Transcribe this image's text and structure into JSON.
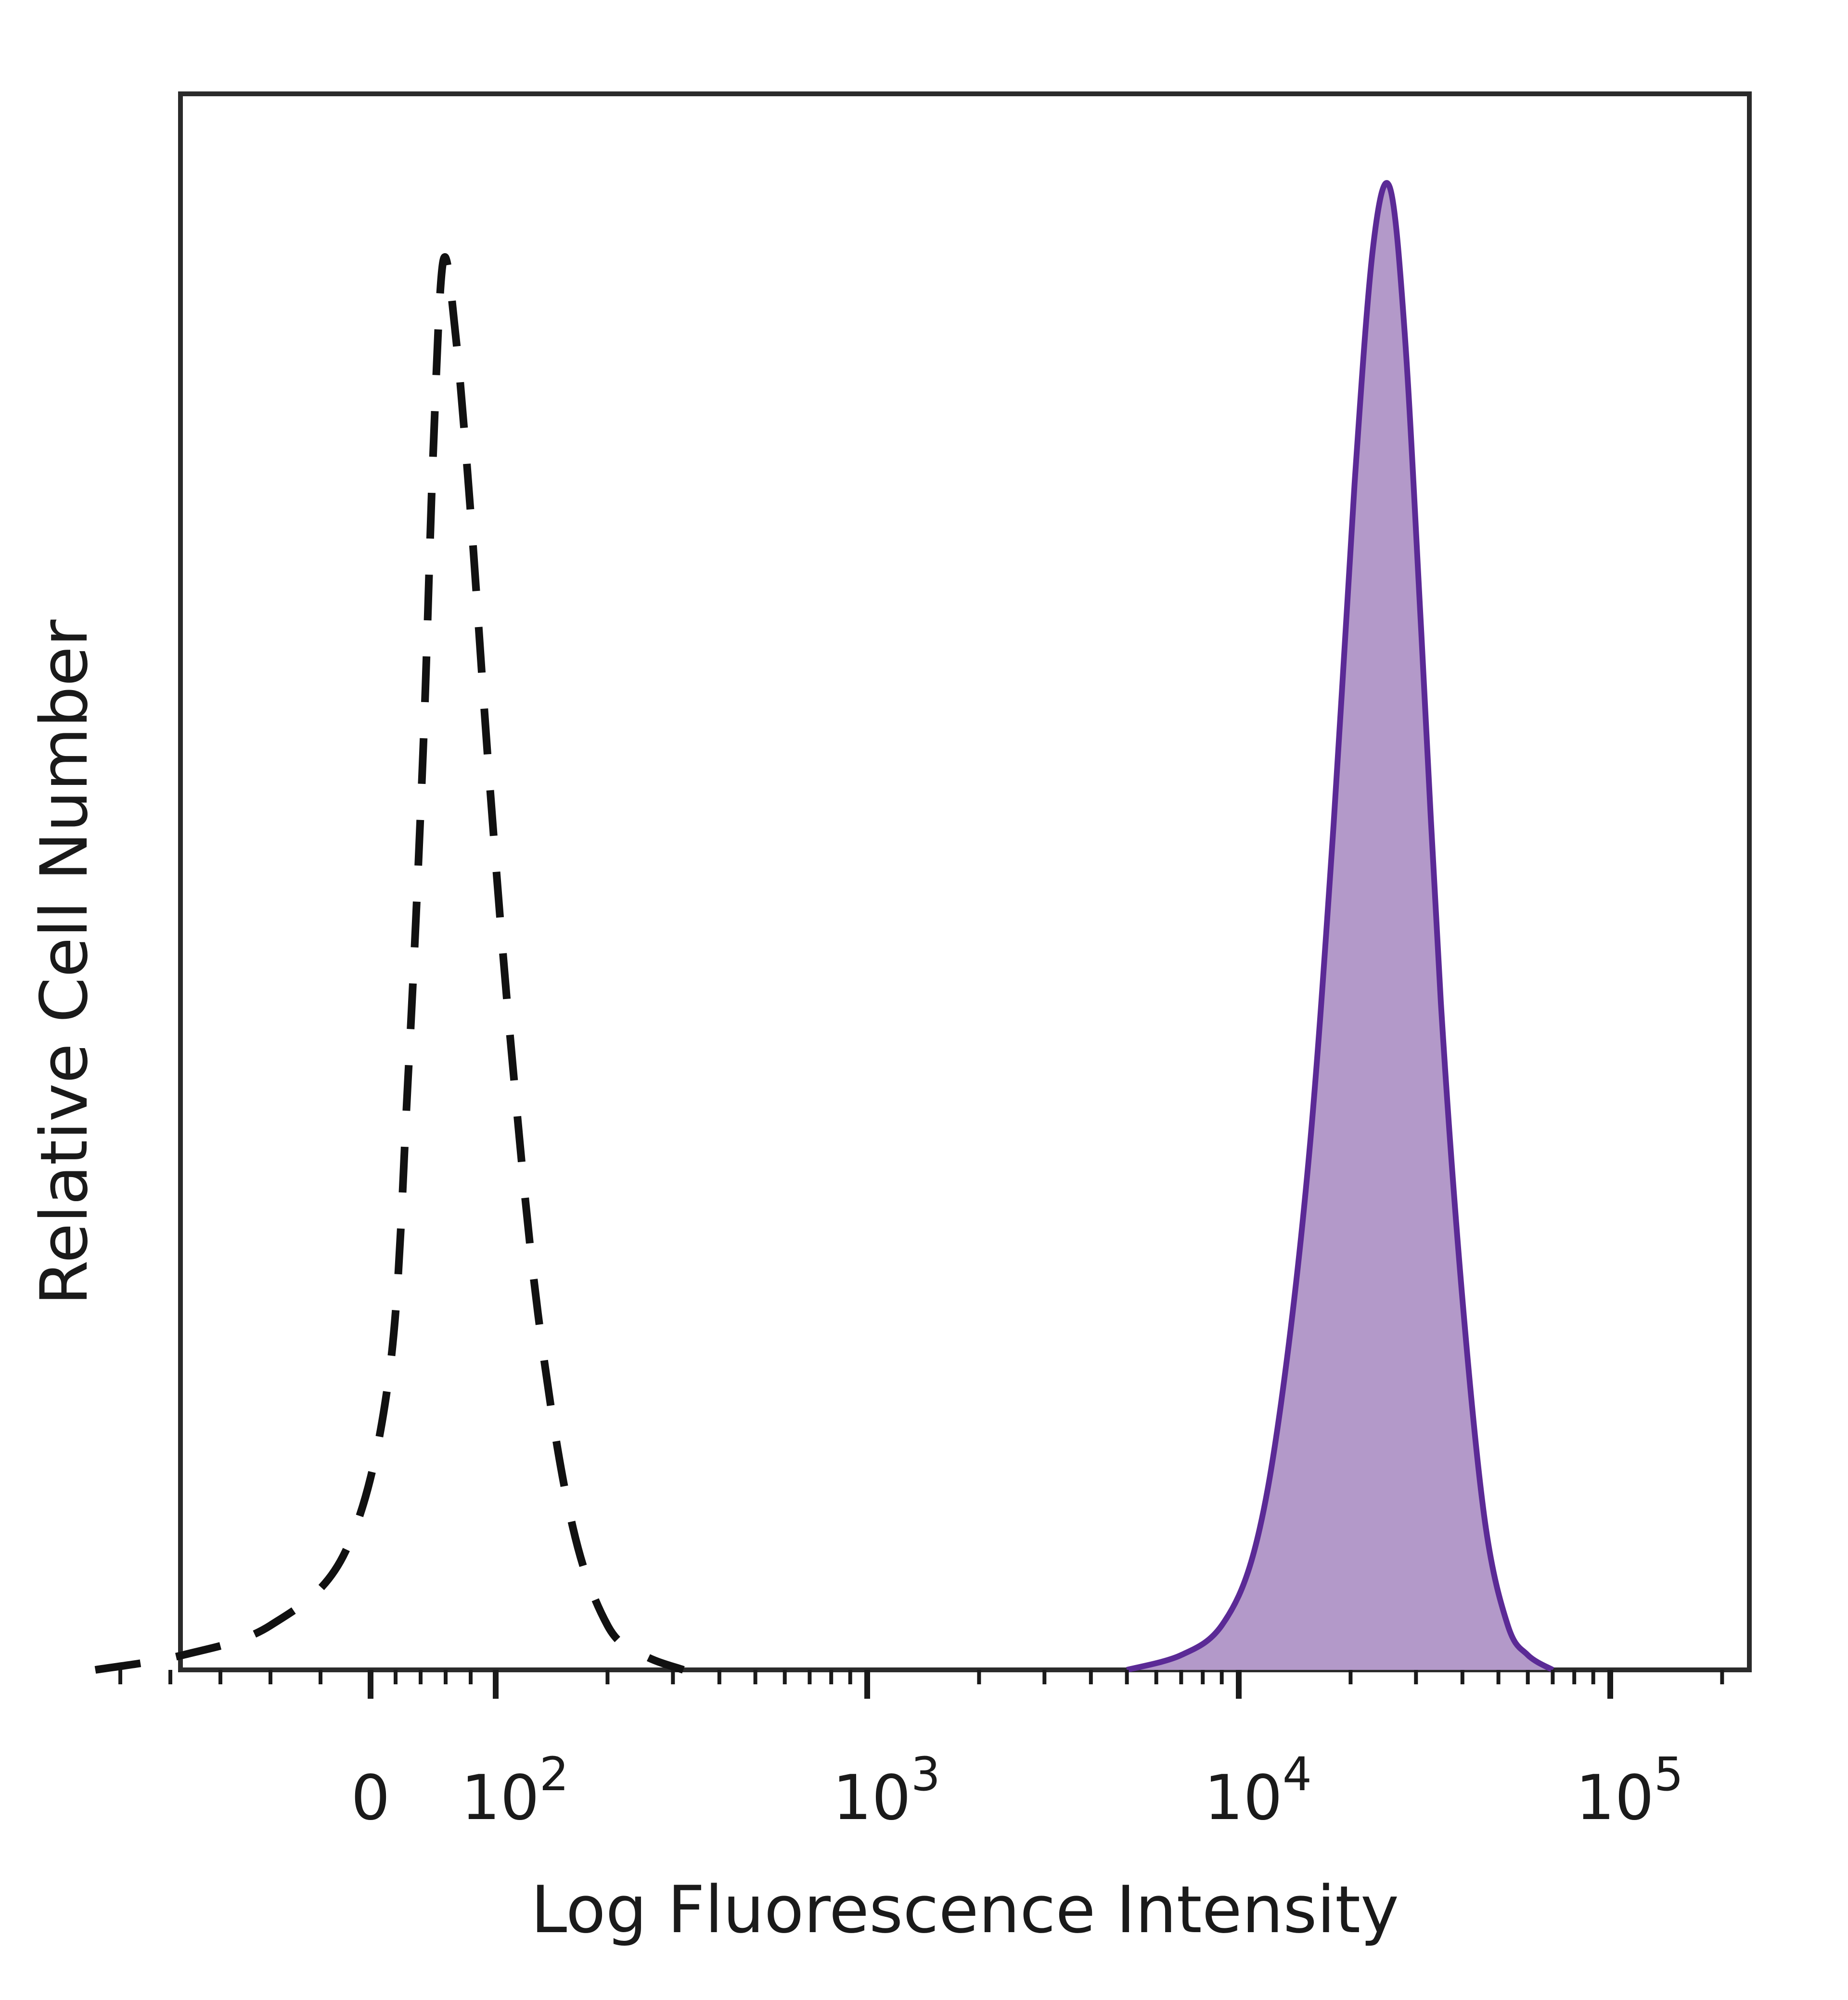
{
  "chart_data": {
    "type": "area",
    "title": "",
    "xlabel": "Log Fluorescence Intensity",
    "ylabel": "Relative Cell Number",
    "x_scale": "biexponential",
    "xlim": [
      -250,
      180000
    ],
    "ylim": [
      0,
      1.05
    ],
    "x_ticks": [
      {
        "value": 0,
        "base": "0",
        "exp": ""
      },
      {
        "value": 100,
        "base": "10",
        "exp": "2"
      },
      {
        "value": 1000,
        "base": "10",
        "exp": "3"
      },
      {
        "value": 10000,
        "base": "10",
        "exp": "4"
      },
      {
        "value": 100000,
        "base": "10",
        "exp": "5"
      }
    ],
    "grid": false,
    "legend": "none",
    "series": [
      {
        "style": "dashed-outline",
        "color": "#111111",
        "x": [
          -220,
          -150,
          -80,
          -20,
          15,
          30,
          42,
          50,
          58,
          68,
          80,
          95,
          110,
          130,
          160,
          200,
          250,
          320
        ],
        "y": [
          0.0,
          0.01,
          0.03,
          0.08,
          0.2,
          0.4,
          0.62,
          0.82,
          0.95,
          0.9,
          0.78,
          0.6,
          0.42,
          0.24,
          0.1,
          0.03,
          0.01,
          0.0
        ]
      },
      {
        "style": "filled",
        "color": "#5b2a96",
        "fill": "#b399c9",
        "x": [
          5000,
          7000,
          9000,
          11000,
          13000,
          15500,
          18000,
          20500,
          23000,
          25500,
          28000,
          31000,
          35000,
          40000,
          46000,
          53000,
          60000,
          70000
        ],
        "y": [
          0.0,
          0.01,
          0.03,
          0.08,
          0.18,
          0.35,
          0.57,
          0.8,
          0.96,
          1.0,
          0.9,
          0.7,
          0.45,
          0.25,
          0.1,
          0.03,
          0.01,
          0.0
        ]
      }
    ]
  }
}
